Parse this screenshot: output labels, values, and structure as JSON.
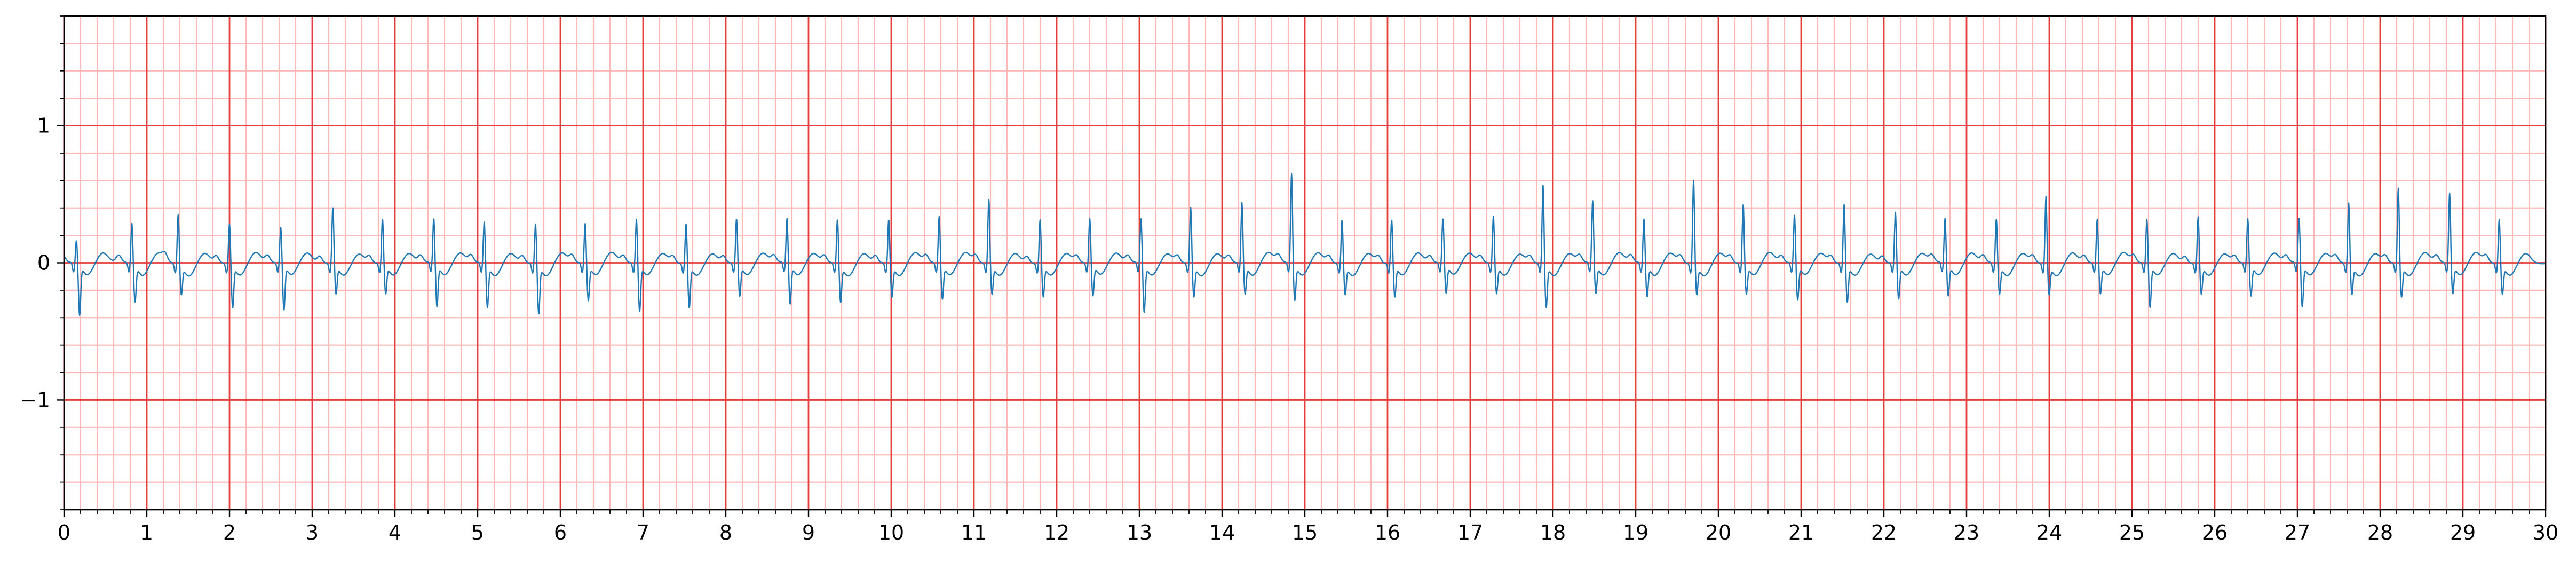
{
  "chart_data": {
    "type": "line",
    "title": "",
    "xlabel": "",
    "ylabel": "",
    "xlim": [
      0,
      30
    ],
    "ylim": [
      -1.8,
      1.8
    ],
    "x_ticks": [
      0,
      1,
      2,
      3,
      4,
      5,
      6,
      7,
      8,
      9,
      10,
      11,
      12,
      13,
      14,
      15,
      16,
      17,
      18,
      19,
      20,
      21,
      22,
      23,
      24,
      25,
      26,
      27,
      28,
      29,
      30
    ],
    "x_tick_labels": [
      "0",
      "1",
      "2",
      "3",
      "4",
      "5",
      "6",
      "7",
      "8",
      "9",
      "10",
      "11",
      "12",
      "13",
      "14",
      "15",
      "16",
      "17",
      "18",
      "19",
      "20",
      "21",
      "22",
      "23",
      "24",
      "25",
      "26",
      "27",
      "28",
      "29",
      "30"
    ],
    "y_ticks": [
      -1,
      0,
      1
    ],
    "y_tick_labels": [
      "−1",
      "0",
      "1"
    ],
    "grid": {
      "major": true,
      "minor": true,
      "x_major_step": 1,
      "x_minor_step": 0.2,
      "y_major_step": 1,
      "y_minor_step": 0.2
    },
    "colors": {
      "major_grid": "#e63d3d",
      "minor_grid": "#ffb8b8",
      "trace": "#1f77b4",
      "axes": "#000000"
    },
    "series": [
      {
        "beat_times": [
          0.15,
          0.82,
          1.38,
          2.0,
          2.62,
          3.25,
          3.85,
          4.47,
          5.08,
          5.7,
          6.3,
          6.92,
          7.52,
          8.13,
          8.74,
          9.35,
          9.97,
          10.58,
          11.18,
          11.8,
          12.4,
          13.02,
          13.62,
          14.24,
          14.84,
          15.45,
          16.05,
          16.67,
          17.28,
          17.88,
          18.48,
          19.1,
          19.7,
          20.3,
          20.92,
          21.52,
          22.14,
          22.74,
          23.36,
          23.96,
          24.58,
          25.18,
          25.8,
          26.4,
          27.02,
          27.62,
          28.22,
          28.84,
          29.44
        ],
        "r_peaks": [
          0.17,
          0.3,
          0.37,
          0.3,
          0.27,
          0.42,
          0.33,
          0.33,
          0.31,
          0.3,
          0.3,
          0.33,
          0.3,
          0.33,
          0.33,
          0.33,
          0.33,
          0.35,
          0.48,
          0.33,
          0.33,
          0.33,
          0.42,
          0.45,
          0.66,
          0.33,
          0.33,
          0.33,
          0.35,
          0.58,
          0.46,
          0.33,
          0.62,
          0.44,
          0.36,
          0.44,
          0.38,
          0.33,
          0.33,
          0.5,
          0.33,
          0.33,
          0.35,
          0.33,
          0.33,
          0.45,
          0.56,
          0.52,
          0.33
        ],
        "s_troughs": [
          -0.36,
          -0.26,
          -0.2,
          -0.3,
          -0.32,
          -0.2,
          -0.2,
          -0.3,
          -0.3,
          -0.34,
          -0.25,
          -0.33,
          -0.3,
          -0.22,
          -0.28,
          -0.26,
          -0.22,
          -0.24,
          -0.2,
          -0.22,
          -0.22,
          -0.34,
          -0.22,
          -0.2,
          -0.25,
          -0.2,
          -0.22,
          -0.2,
          -0.2,
          -0.3,
          -0.2,
          -0.22,
          -0.2,
          -0.2,
          -0.25,
          -0.26,
          -0.24,
          -0.22,
          -0.2,
          -0.2,
          -0.2,
          -0.3,
          -0.2,
          -0.22,
          -0.3,
          -0.2,
          -0.22,
          -0.2,
          -0.2
        ]
      }
    ]
  }
}
